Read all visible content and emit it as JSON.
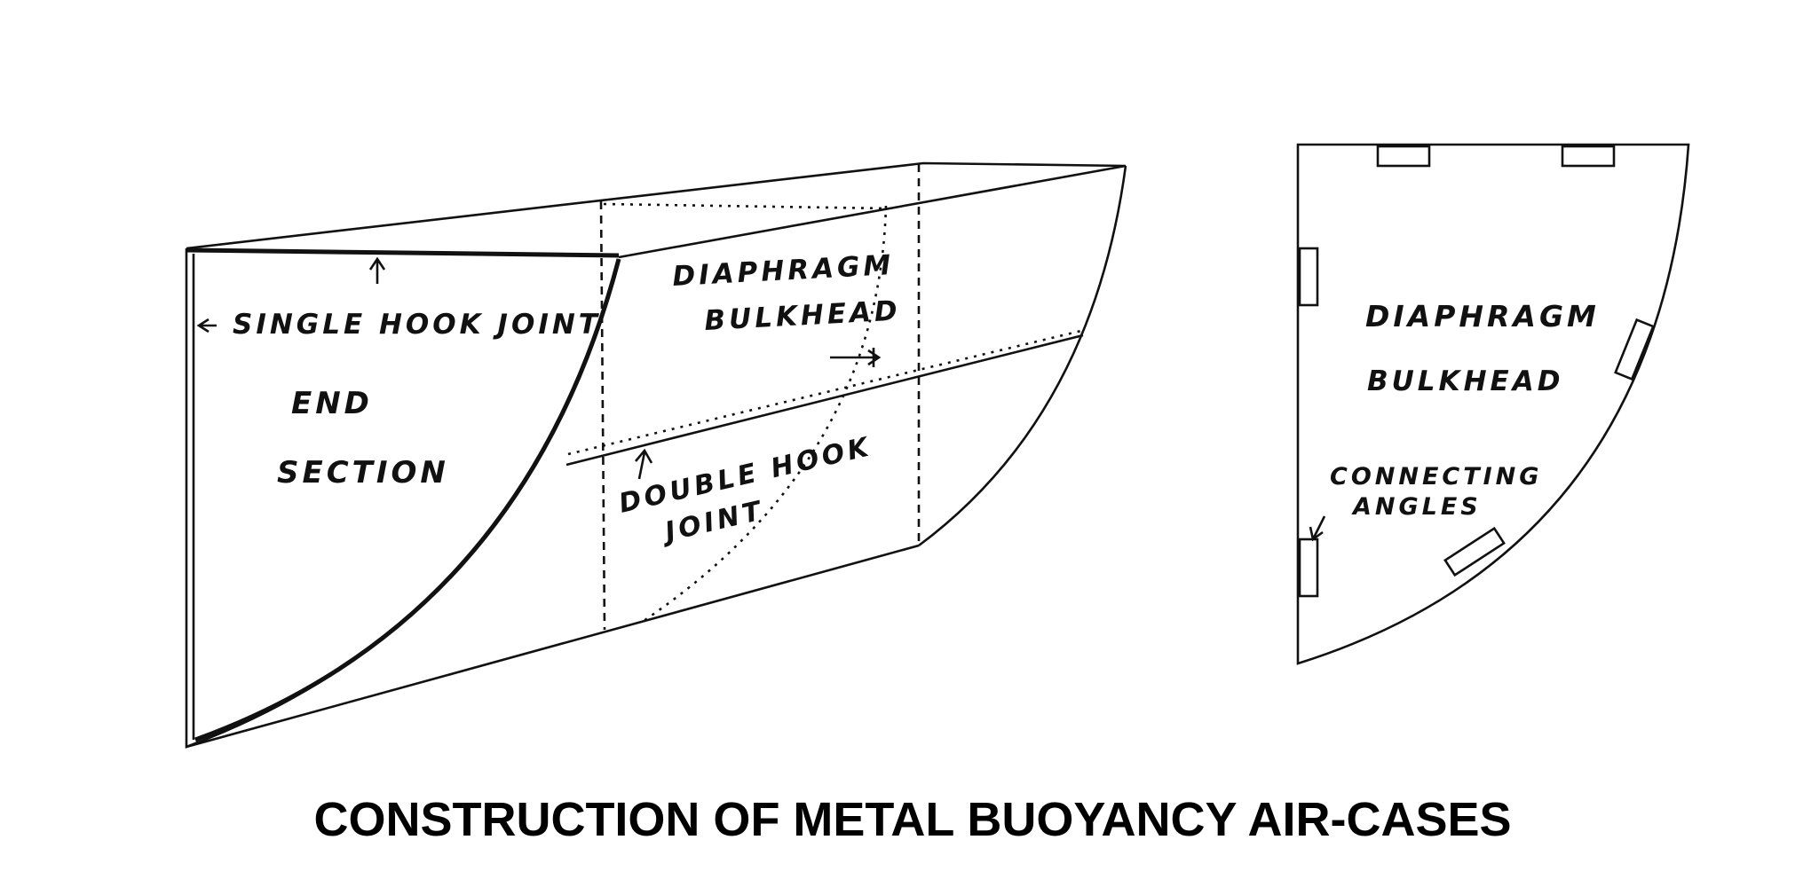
{
  "figure": {
    "caption": "CONSTRUCTION OF METAL BUOYANCY AIR-CASES",
    "left_drawing": {
      "labels": {
        "single_hook_joint": "SINGLE HOOK JOINT",
        "end": "END",
        "section": "SECTION",
        "diaphragm": "DIAPHRAGM",
        "bulkhead": "BULKHEAD",
        "double_hook": "DOUBLE HOOK",
        "joint": "JOINT"
      }
    },
    "right_drawing": {
      "labels": {
        "diaphragm": "DIAPHRAGM",
        "bulkhead": "BULKHEAD",
        "connecting": "CONNECTING",
        "angles": "ANGLES"
      }
    }
  }
}
